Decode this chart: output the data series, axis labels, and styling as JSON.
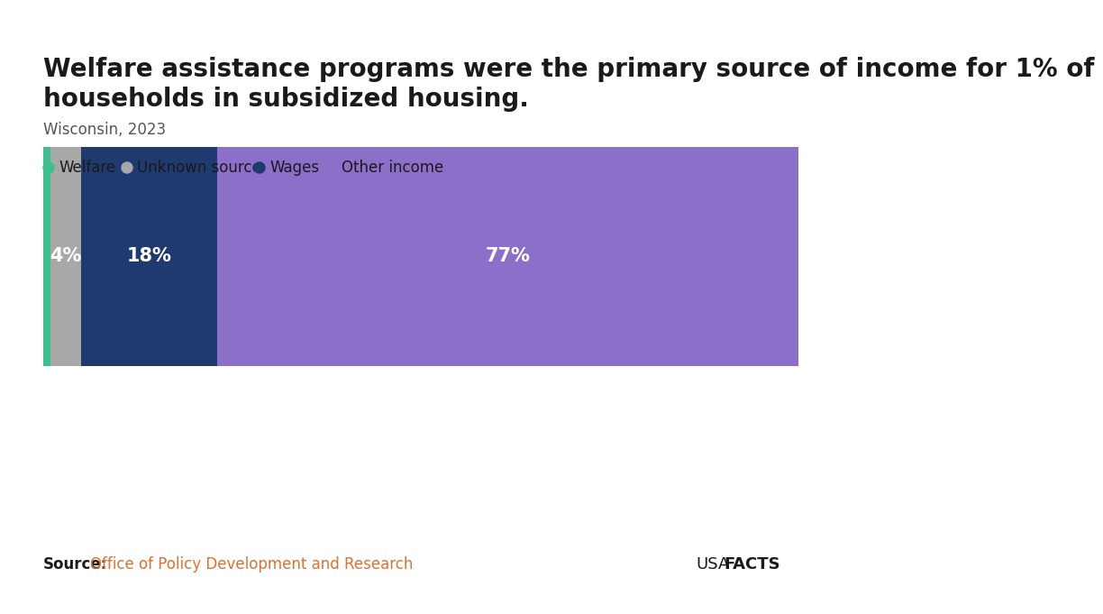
{
  "title_line1": "Welfare assistance programs were the primary source of income for 1% of",
  "title_line2": "households in subsidized housing.",
  "subtitle": "Wisconsin, 2023",
  "categories": [
    "Welfare",
    "Unknown source",
    "Wages",
    "Other income"
  ],
  "values": [
    1,
    4,
    18,
    77
  ],
  "colors": [
    "#3dbf8f",
    "#a8a8a8",
    "#1f3a6e",
    "#8B6FC8"
  ],
  "bar_labels": [
    "",
    "4%",
    "18%",
    "77%"
  ],
  "source_label": "Source:",
  "source_text": "Office of Policy Development and Research",
  "usa_text": "USA",
  "facts_text": "FACTS",
  "background_color": "#ffffff",
  "title_fontsize": 20,
  "subtitle_fontsize": 12,
  "legend_fontsize": 12,
  "label_fontsize": 15,
  "source_fontsize": 12
}
